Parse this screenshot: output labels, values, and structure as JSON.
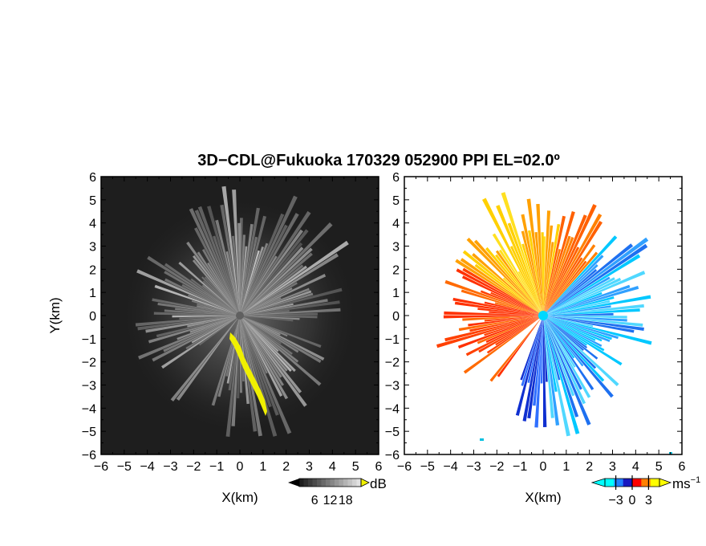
{
  "title": "3D−CDL@Fukuoka 170329 052900 PPI EL=02.0º",
  "chart_data": [
    {
      "type": "heatmap",
      "panel": "reflectivity",
      "xlabel": "X(km)",
      "ylabel": "Y(km)",
      "xlim": [
        -6,
        6
      ],
      "ylim": [
        -6,
        6
      ],
      "x_ticks": [
        "−6",
        "−5",
        "−4",
        "−3",
        "−2",
        "−1",
        "0",
        "1",
        "2",
        "3",
        "4",
        "5",
        "6"
      ],
      "y_ticks": [
        "6",
        "5",
        "4",
        "3",
        "2",
        "1",
        "0",
        "−1",
        "−2",
        "−3",
        "−4",
        "−5",
        "−6"
      ],
      "background_color": "#1e1e1e",
      "highlight_color": "#f0f000",
      "colorbar": {
        "unit": "dB",
        "tick_labels": [
          "6",
          "12",
          "18"
        ],
        "tick_values": [
          6,
          12,
          18
        ],
        "range": [
          0,
          24
        ]
      }
    },
    {
      "type": "heatmap",
      "panel": "doppler-velocity",
      "xlabel": "X(km)",
      "ylabel": "",
      "xlim": [
        -6,
        6
      ],
      "ylim": [
        -6,
        6
      ],
      "x_ticks": [
        "−6",
        "−5",
        "−4",
        "−3",
        "−2",
        "−1",
        "0",
        "1",
        "2",
        "3",
        "4",
        "5",
        "6"
      ],
      "y_ticks": [
        "6",
        "5",
        "4",
        "3",
        "2",
        "1",
        "0",
        "−1",
        "−2",
        "−3",
        "−4",
        "−5",
        "−6"
      ],
      "background_color": "#ffffff",
      "colorbar": {
        "unit": "ms",
        "unit_exponent": "−1",
        "tick_labels": [
          "−3",
          "0",
          "3"
        ],
        "tick_values": [
          -3,
          0,
          3
        ],
        "range": [
          -5,
          5
        ],
        "colors": [
          "#00ffff",
          "#2080ff",
          "#1818c0",
          "#ff0000",
          "#ff8000",
          "#ffff00"
        ]
      }
    }
  ]
}
